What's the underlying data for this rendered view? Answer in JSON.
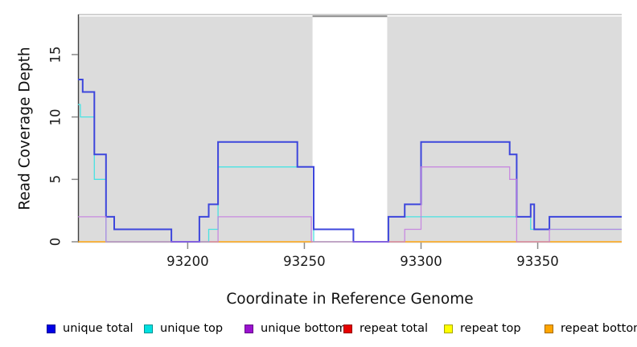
{
  "chart_data": {
    "type": "line",
    "subtype": "step",
    "title": "",
    "xlabel": "Coordinate in Reference Genome",
    "ylabel": "Read Coverage Depth",
    "x_ticks": [
      93200,
      93250,
      93300,
      93350
    ],
    "y_ticks": [
      0,
      5,
      10,
      15
    ],
    "xlim": [
      93153,
      93386
    ],
    "ylim": [
      0,
      18.2
    ],
    "grid": false,
    "background": "#ffffff",
    "shaded_regions": [
      {
        "x0": 93153,
        "x1": 93253.5,
        "color": "#dcdcdc"
      },
      {
        "x0": 93285.5,
        "x1": 93386,
        "color": "#dcdcdc"
      }
    ],
    "draw_order": [
      "repeat total",
      "repeat top",
      "repeat bottom",
      "unique top",
      "unique total",
      "unique bottom"
    ],
    "series": [
      {
        "name": "unique total",
        "color": "#3d46dc",
        "width": 2,
        "opacity": 1,
        "points": [
          [
            93153,
            13
          ],
          [
            93155,
            12
          ],
          [
            93160,
            7
          ],
          [
            93165,
            2
          ],
          [
            93168.5,
            1
          ],
          [
            93193,
            0
          ],
          [
            93205,
            2
          ],
          [
            93209,
            3
          ],
          [
            93213,
            8
          ],
          [
            93247,
            6
          ],
          [
            93254,
            1
          ],
          [
            93271,
            0
          ],
          [
            93286,
            2
          ],
          [
            93293,
            3
          ],
          [
            93300,
            8
          ],
          [
            93338,
            7
          ],
          [
            93341,
            2
          ],
          [
            93347,
            3
          ],
          [
            93348.5,
            1
          ],
          [
            93355,
            2
          ],
          [
            93386,
            2
          ]
        ]
      },
      {
        "name": "unique top",
        "color": "#49e2e2",
        "width": 1.3,
        "opacity": 1,
        "points": [
          [
            93153,
            11
          ],
          [
            93154,
            10
          ],
          [
            93160,
            5
          ],
          [
            93165,
            0
          ],
          [
            93209,
            1
          ],
          [
            93213,
            6
          ],
          [
            93254,
            0
          ],
          [
            93286,
            2
          ],
          [
            93347,
            1
          ],
          [
            93386,
            1
          ]
        ]
      },
      {
        "name": "unique bottom",
        "color": "#c47ae0",
        "width": 1.3,
        "opacity": 0.85,
        "points": [
          [
            93153,
            2
          ],
          [
            93165,
            0
          ],
          [
            93213,
            2
          ],
          [
            93253,
            0
          ],
          [
            93293,
            1
          ],
          [
            93300,
            6
          ],
          [
            93338,
            5
          ],
          [
            93341,
            0
          ],
          [
            93355,
            1
          ],
          [
            93386,
            1
          ]
        ]
      },
      {
        "name": "repeat total",
        "color": "#dc4060",
        "width": 1,
        "opacity": 1,
        "points": [
          [
            93153,
            0
          ],
          [
            93386,
            0
          ]
        ]
      },
      {
        "name": "repeat top",
        "color": "#ffff00",
        "width": 1,
        "opacity": 1,
        "points": [
          [
            93153,
            0
          ],
          [
            93386,
            0
          ]
        ]
      },
      {
        "name": "repeat bottom",
        "color": "#ffa513",
        "width": 1.6,
        "opacity": 1,
        "points": [
          [
            93153,
            0
          ],
          [
            93386,
            0
          ]
        ]
      }
    ],
    "legend_position": "bottom"
  },
  "legend": {
    "items": [
      {
        "label": "unique total",
        "swatch_color": "#0000e6"
      },
      {
        "label": "unique top",
        "swatch_color": "#00e0e0"
      },
      {
        "label": "unique bottom",
        "swatch_color": "#9a12cf"
      },
      {
        "label": "repeat total",
        "swatch_color": "#e60000"
      },
      {
        "label": "repeat top",
        "swatch_color": "#ffff00"
      },
      {
        "label": "repeat bottom",
        "swatch_color": "#ffa500"
      }
    ]
  },
  "colors": {
    "shaded_region": "#dcdcdc",
    "axis_line": "#404040",
    "tick_mark": "#8a8a8a",
    "plot_top_border_light": "#c8c8c8",
    "plot_top_border_dark": "#8c8c8c",
    "tick_text": "#1a1a1a"
  }
}
